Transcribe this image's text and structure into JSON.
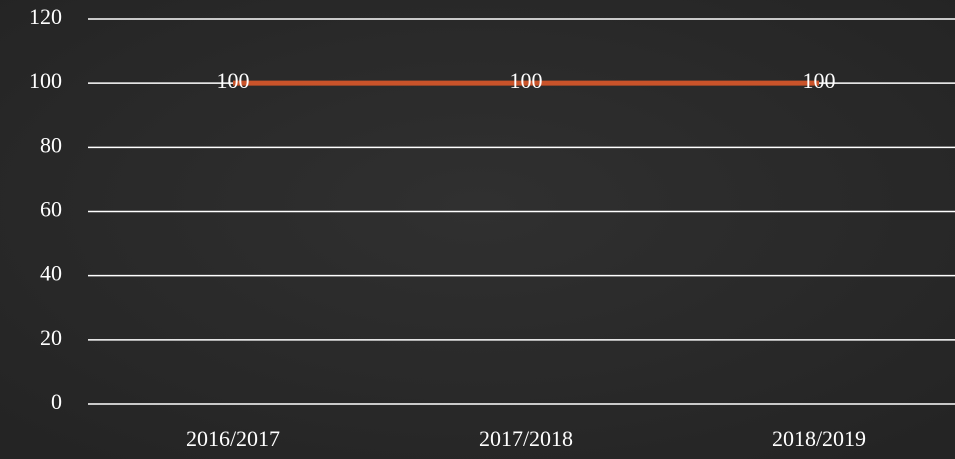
{
  "chart_data": {
    "type": "line",
    "categories": [
      "2016/2017",
      "2017/2018",
      "2018/2019"
    ],
    "series": [
      {
        "name": null,
        "color": "#c9532a",
        "values": [
          100,
          100,
          100
        ]
      }
    ],
    "ylim": [
      0,
      120
    ],
    "yticks": [
      0,
      20,
      40,
      60,
      80,
      100,
      120
    ],
    "grid": true
  }
}
